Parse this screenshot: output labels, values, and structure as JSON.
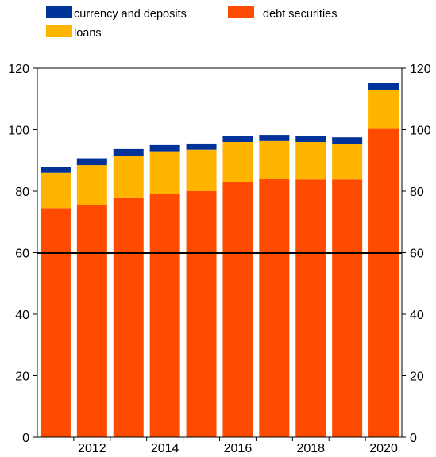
{
  "chart_data": {
    "type": "bar",
    "stacked": true,
    "x": [
      2011,
      2012,
      2013,
      2014,
      2015,
      2016,
      2017,
      2018,
      2019,
      2020
    ],
    "xtick_labels": [
      "",
      "2012",
      "",
      "2014",
      "",
      "2016",
      "",
      "2018",
      "",
      "2020"
    ],
    "ylim": [
      0,
      120
    ],
    "yticks": [
      0,
      20,
      40,
      60,
      80,
      100,
      120
    ],
    "secondary_y_axis": true,
    "grid": false,
    "legend_position": "top",
    "reference_line": {
      "value": 60,
      "color": "#000000"
    },
    "series": [
      {
        "name": "debt securities",
        "color": "#FF4B00",
        "values": [
          74.5,
          75.5,
          78.0,
          79.0,
          80.0,
          83.0,
          84.0,
          83.8,
          83.8,
          100.5
        ]
      },
      {
        "name": "loans",
        "color": "#FFB400",
        "values": [
          11.5,
          13.0,
          13.5,
          14.0,
          13.5,
          13.0,
          12.3,
          12.2,
          11.5,
          12.5
        ]
      },
      {
        "name": "currency and deposits",
        "color": "#003399",
        "values": [
          2.0,
          2.2,
          2.2,
          2.0,
          2.0,
          2.0,
          2.0,
          2.0,
          2.2,
          2.2
        ]
      }
    ],
    "legend": [
      {
        "name": "currency and deposits",
        "color": "#003399"
      },
      {
        "name": "debt securities",
        "color": "#FF4B00"
      },
      {
        "name": "loans",
        "color": "#FFB400"
      }
    ]
  }
}
